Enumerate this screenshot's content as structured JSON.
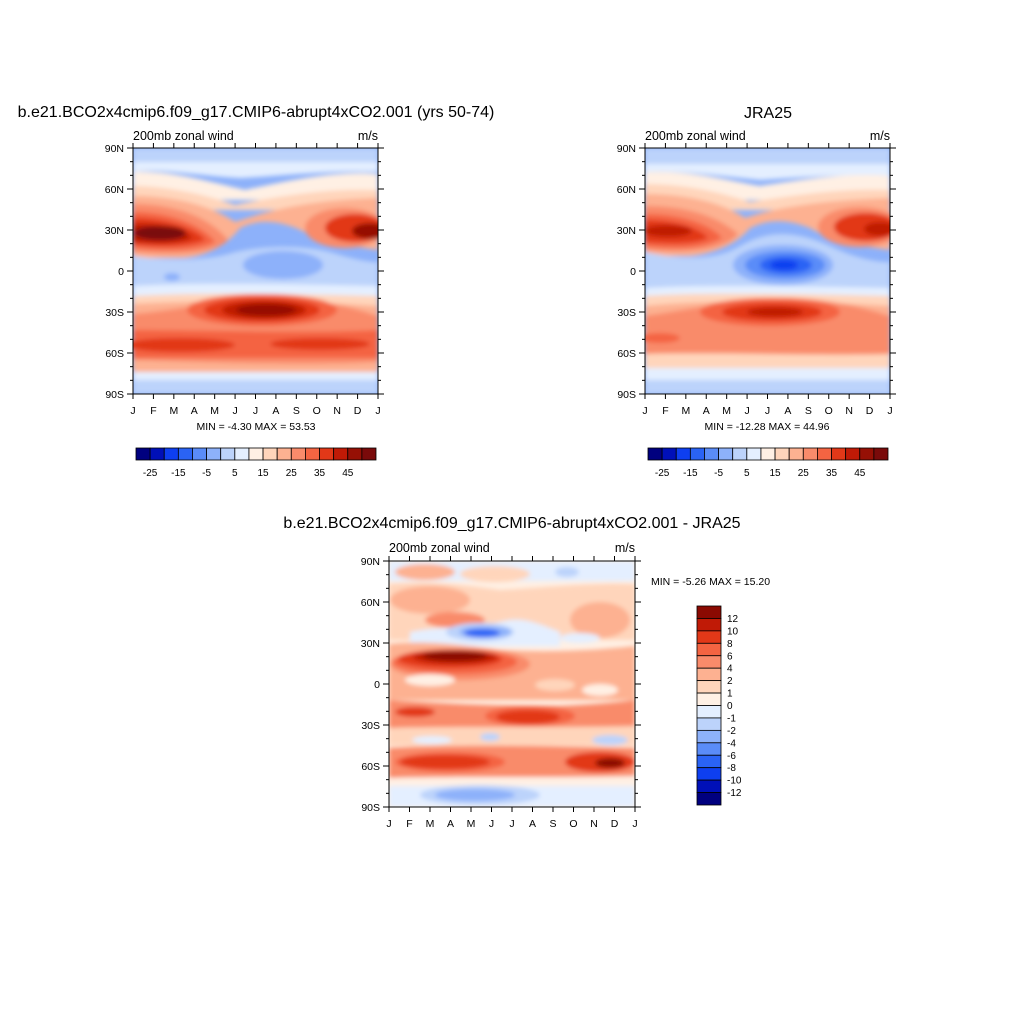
{
  "panels": [
    {
      "title": "b.e21.BCO2x4cmip6.f09_g17.CMIP6-abrupt4xCO2.001 (yrs 50-74)",
      "left_label": "200mb zonal wind",
      "right_label": "m/s",
      "stats": "MIN =  -4.30 MAX =  53.53"
    },
    {
      "title": "JRA25",
      "left_label": "200mb zonal wind",
      "right_label": "m/s",
      "stats": "MIN = -12.28 MAX =  44.96"
    },
    {
      "title": "b.e21.BCO2x4cmip6.f09_g17.CMIP6-abrupt4xCO2.001 - JRA25",
      "left_label": "200mb zonal wind",
      "right_label": "m/s",
      "stats": "MIN =  -5.26 MAX =  15.20"
    }
  ],
  "colors": {
    "full_scale": [
      "#00007f",
      "#0010b8",
      "#0e3ff0",
      "#2a63f5",
      "#5a8cf8",
      "#8db1fa",
      "#bcd3fb",
      "#e4efff",
      "#fff0e4",
      "#ffd5bb",
      "#fdb191",
      "#f98b6b",
      "#f46442",
      "#e23818",
      "#c01a06",
      "#961005",
      "#7a0a0a"
    ],
    "diff_scale": [
      "#00007f",
      "#0010b8",
      "#0e3ff0",
      "#2a63f5",
      "#5a8cf8",
      "#8db1fa",
      "#bcd3fb",
      "#e4efff",
      "#fff0e4",
      "#ffd5bb",
      "#fdb191",
      "#f98b6b",
      "#f46442",
      "#e23818",
      "#c01a06",
      "#8b0a02"
    ]
  },
  "chart_data": [
    {
      "type": "heatmap",
      "title": "b.e21.BCO2x4cmip6.f09_g17.CMIP6-abrupt4xCO2.001 (yrs 50-74)",
      "variable": "200mb zonal wind",
      "units": "m/s",
      "x": [
        "J",
        "F",
        "M",
        "A",
        "M",
        "J",
        "J",
        "A",
        "S",
        "O",
        "N",
        "D",
        "J"
      ],
      "y_ticks": [
        "90N",
        "60N",
        "30N",
        "0",
        "30S",
        "60S",
        "90S"
      ],
      "min": -4.3,
      "max": 53.53,
      "colorbar_ticks": [
        "-25",
        "-15",
        "-5",
        "5",
        "15",
        "25",
        "35",
        "45"
      ],
      "features": [
        {
          "lat": 27,
          "month": 1.5,
          "value": 50
        },
        {
          "lat": 29,
          "month": 12,
          "value": 45
        },
        {
          "lat": -28,
          "month": 7.5,
          "value": 47
        },
        {
          "lat": -52,
          "month": 1,
          "value": 35
        },
        {
          "lat": 2,
          "month": 7.5,
          "value": -3
        },
        {
          "lat": -3,
          "month": 2.5,
          "value": -2
        }
      ]
    },
    {
      "type": "heatmap",
      "title": "JRA25",
      "variable": "200mb zonal wind",
      "units": "m/s",
      "x": [
        "J",
        "F",
        "M",
        "A",
        "M",
        "J",
        "J",
        "A",
        "S",
        "O",
        "N",
        "D",
        "J"
      ],
      "y_ticks": [
        "90N",
        "60N",
        "30N",
        "0",
        "30S",
        "60S",
        "90S"
      ],
      "min": -12.28,
      "max": 44.96,
      "colorbar_ticks": [
        "-25",
        "-15",
        "-5",
        "5",
        "15",
        "25",
        "35",
        "45"
      ],
      "features": [
        {
          "lat": 30,
          "month": 1.5,
          "value": 40
        },
        {
          "lat": 31,
          "month": 12.5,
          "value": 42
        },
        {
          "lat": 4,
          "month": 7.5,
          "value": -12
        },
        {
          "lat": -30,
          "month": 7.5,
          "value": 42
        },
        {
          "lat": -48,
          "month": 1,
          "value": 30
        }
      ]
    },
    {
      "type": "heatmap",
      "title": "b.e21.BCO2x4cmip6.f09_g17.CMIP6-abrupt4xCO2.001 - JRA25",
      "variable": "200mb zonal wind",
      "units": "m/s",
      "x": [
        "J",
        "F",
        "M",
        "A",
        "M",
        "J",
        "J",
        "A",
        "S",
        "O",
        "N",
        "D",
        "J"
      ],
      "y_ticks": [
        "90N",
        "60N",
        "30N",
        "0",
        "30S",
        "60S",
        "90S"
      ],
      "min": -5.26,
      "max": 15.2,
      "colorbar_ticks": [
        "12",
        "10",
        "8",
        "6",
        "4",
        "2",
        "1",
        "0",
        "-1",
        "-2",
        "-4",
        "-6",
        "-8",
        "-10",
        "-12"
      ],
      "features": [
        {
          "lat": 22,
          "month": 4.5,
          "value": 14
        },
        {
          "lat": -27,
          "month": 7,
          "value": 10
        },
        {
          "lat": -56,
          "month": 12,
          "value": 15
        },
        {
          "lat": -57,
          "month": 3,
          "value": 10
        },
        {
          "lat": 40,
          "month": 5,
          "value": -5
        },
        {
          "lat": -80,
          "month": 4,
          "value": -3
        },
        {
          "lat": 84,
          "month": 9,
          "value": -2
        }
      ]
    }
  ]
}
